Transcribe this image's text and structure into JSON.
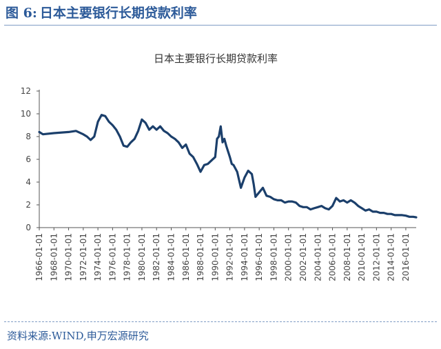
{
  "figure": {
    "label": "图 6:",
    "caption": "日本主要银行长期贷款利率",
    "source": "资料来源:WIND,申万宏源研究"
  },
  "colors": {
    "line": "#1b3f6b",
    "header_text": "#2c5a99",
    "axis": "#555555"
  },
  "chart_data": {
    "type": "line",
    "title": "日本主要银行长期贷款利率",
    "xlabel": "",
    "ylabel": "",
    "x_range": [
      "1966-01-01",
      "2017-06-01"
    ],
    "ylim": [
      0,
      12
    ],
    "y_ticks": [
      0,
      2,
      4,
      6,
      8,
      10,
      12
    ],
    "x_ticks": [
      "1966-01-01",
      "1968-01-01",
      "1970-01-01",
      "1972-01-01",
      "1974-01-01",
      "1976-01-01",
      "1978-01-01",
      "1980-01-01",
      "1982-01-01",
      "1984-01-01",
      "1986-01-01",
      "1988-01-01",
      "1990-01-01",
      "1992-01-01",
      "1994-01-01",
      "1996-01-01",
      "1998-01-01",
      "2000-01-01",
      "2002-01-01",
      "2004-01-01",
      "2006-01-01",
      "2008-01-01",
      "2010-01-01",
      "2012-01-01",
      "2014-01-01",
      "2016-01-01"
    ],
    "grid": false,
    "legend": "none",
    "series": [
      {
        "points": [
          [
            "1966-01",
            8.4
          ],
          [
            "1966-07",
            8.2
          ],
          [
            "1968-01",
            8.3
          ],
          [
            "1970-01",
            8.4
          ],
          [
            "1971-01",
            8.5
          ],
          [
            "1972-01",
            8.2
          ],
          [
            "1972-07",
            8.0
          ],
          [
            "1973-01",
            7.7
          ],
          [
            "1973-07",
            8.0
          ],
          [
            "1974-01",
            9.3
          ],
          [
            "1974-07",
            9.9
          ],
          [
            "1975-01",
            9.8
          ],
          [
            "1975-07",
            9.3
          ],
          [
            "1976-01",
            9.0
          ],
          [
            "1976-07",
            8.6
          ],
          [
            "1977-01",
            8.0
          ],
          [
            "1977-07",
            7.2
          ],
          [
            "1978-01",
            7.1
          ],
          [
            "1978-07",
            7.5
          ],
          [
            "1979-01",
            7.8
          ],
          [
            "1979-07",
            8.5
          ],
          [
            "1980-01",
            9.5
          ],
          [
            "1980-07",
            9.2
          ],
          [
            "1981-01",
            8.6
          ],
          [
            "1981-07",
            8.9
          ],
          [
            "1982-01",
            8.6
          ],
          [
            "1982-07",
            8.9
          ],
          [
            "1983-01",
            8.5
          ],
          [
            "1983-07",
            8.3
          ],
          [
            "1984-01",
            8.0
          ],
          [
            "1984-07",
            7.8
          ],
          [
            "1985-01",
            7.5
          ],
          [
            "1985-07",
            7.0
          ],
          [
            "1986-01",
            7.3
          ],
          [
            "1986-07",
            6.5
          ],
          [
            "1987-01",
            6.2
          ],
          [
            "1987-07",
            5.6
          ],
          [
            "1988-01",
            4.9
          ],
          [
            "1988-07",
            5.5
          ],
          [
            "1989-01",
            5.6
          ],
          [
            "1989-07",
            5.9
          ],
          [
            "1990-01",
            6.2
          ],
          [
            "1990-04",
            7.8
          ],
          [
            "1990-07",
            8.0
          ],
          [
            "1990-10",
            8.9
          ],
          [
            "1991-01",
            7.5
          ],
          [
            "1991-04",
            7.8
          ],
          [
            "1991-07",
            7.2
          ],
          [
            "1992-01",
            6.2
          ],
          [
            "1992-04",
            5.6
          ],
          [
            "1992-07",
            5.5
          ],
          [
            "1993-01",
            4.9
          ],
          [
            "1993-04",
            4.2
          ],
          [
            "1993-07",
            3.5
          ],
          [
            "1994-01",
            4.4
          ],
          [
            "1994-07",
            5.0
          ],
          [
            "1995-01",
            4.7
          ],
          [
            "1995-04",
            3.8
          ],
          [
            "1995-07",
            2.7
          ],
          [
            "1996-01",
            3.1
          ],
          [
            "1996-07",
            3.5
          ],
          [
            "1997-01",
            2.8
          ],
          [
            "1997-07",
            2.7
          ],
          [
            "1998-01",
            2.5
          ],
          [
            "1998-07",
            2.4
          ],
          [
            "1999-01",
            2.4
          ],
          [
            "1999-07",
            2.2
          ],
          [
            "2000-01",
            2.3
          ],
          [
            "2000-07",
            2.3
          ],
          [
            "2001-01",
            2.2
          ],
          [
            "2001-07",
            1.9
          ],
          [
            "2002-01",
            1.8
          ],
          [
            "2002-07",
            1.8
          ],
          [
            "2003-01",
            1.6
          ],
          [
            "2003-07",
            1.7
          ],
          [
            "2004-01",
            1.8
          ],
          [
            "2004-07",
            1.9
          ],
          [
            "2005-01",
            1.7
          ],
          [
            "2005-07",
            1.6
          ],
          [
            "2006-01",
            1.9
          ],
          [
            "2006-07",
            2.6
          ],
          [
            "2007-01",
            2.3
          ],
          [
            "2007-07",
            2.4
          ],
          [
            "2008-01",
            2.2
          ],
          [
            "2008-07",
            2.4
          ],
          [
            "2009-01",
            2.2
          ],
          [
            "2009-07",
            1.9
          ],
          [
            "2010-01",
            1.7
          ],
          [
            "2010-07",
            1.5
          ],
          [
            "2011-01",
            1.6
          ],
          [
            "2011-07",
            1.4
          ],
          [
            "2012-01",
            1.4
          ],
          [
            "2012-07",
            1.3
          ],
          [
            "2013-01",
            1.3
          ],
          [
            "2013-07",
            1.2
          ],
          [
            "2014-01",
            1.2
          ],
          [
            "2014-07",
            1.1
          ],
          [
            "2015-01",
            1.1
          ],
          [
            "2015-07",
            1.1
          ],
          [
            "2016-01",
            1.05
          ],
          [
            "2016-07",
            0.95
          ],
          [
            "2017-01",
            0.95
          ],
          [
            "2017-06",
            0.9
          ]
        ]
      }
    ]
  }
}
